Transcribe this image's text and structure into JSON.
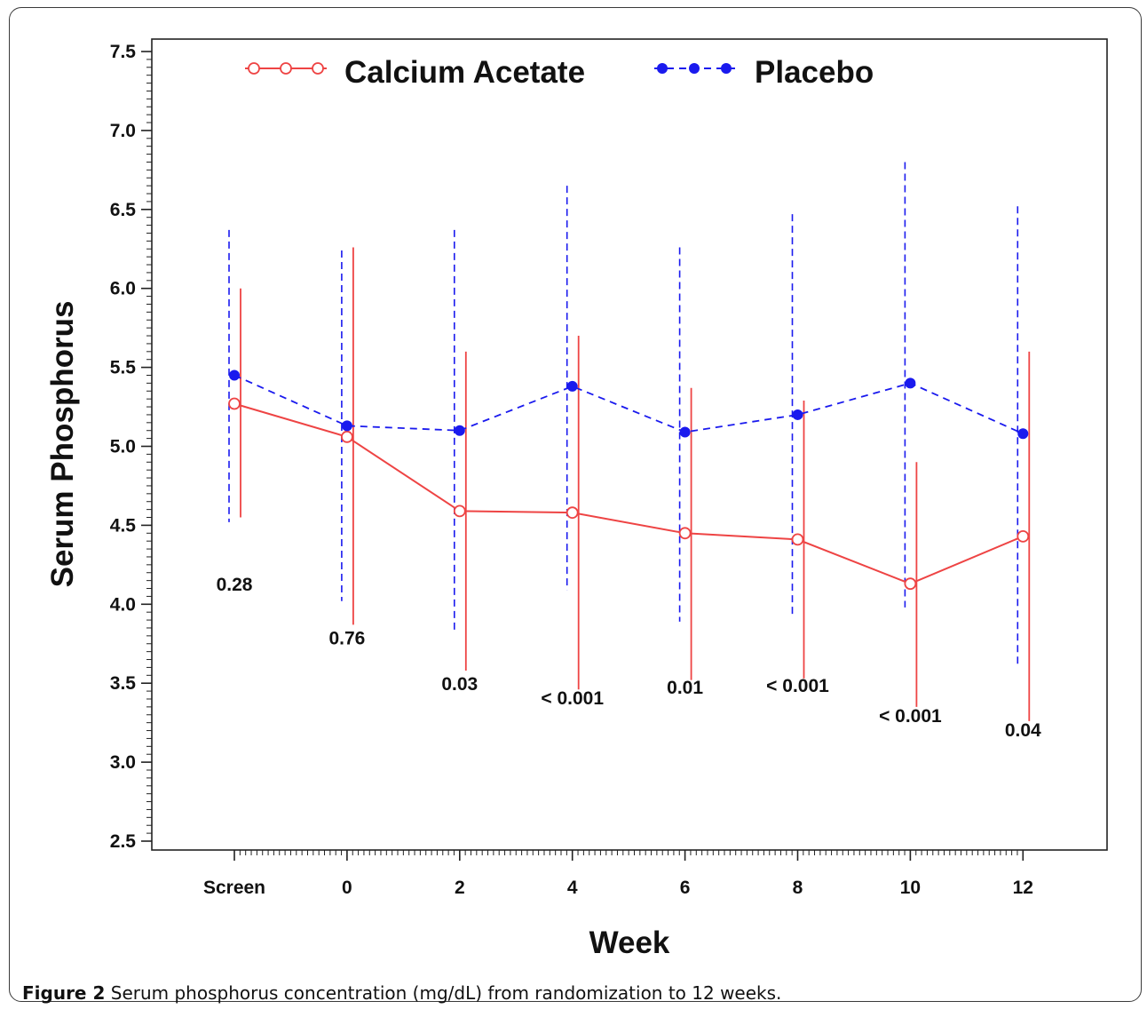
{
  "chart_data": {
    "type": "line",
    "xlabel": "Week",
    "ylabel": "Serum Phosphorus",
    "ylim": [
      2.5,
      7.5
    ],
    "yticks": [
      "2.5",
      "3.0",
      "3.5",
      "4.0",
      "4.5",
      "5.0",
      "5.5",
      "6.0",
      "6.5",
      "7.0",
      "7.5"
    ],
    "categories": [
      "Screen",
      "0",
      "2",
      "4",
      "6",
      "8",
      "10",
      "12"
    ],
    "legend_position": "top",
    "series": [
      {
        "name": "Calcium Acetate",
        "color": "#ee4444",
        "marker": "open-circle",
        "line": "solid",
        "values": [
          5.27,
          5.06,
          4.59,
          4.58,
          4.45,
          4.41,
          4.13,
          4.43
        ],
        "upper": [
          6.0,
          6.26,
          5.6,
          5.7,
          5.37,
          5.29,
          4.9,
          5.6
        ],
        "lower": [
          4.55,
          3.87,
          3.58,
          3.46,
          3.52,
          3.53,
          3.35,
          3.26
        ]
      },
      {
        "name": "Placebo",
        "color": "#1a1aee",
        "marker": "filled-circle",
        "line": "dashed",
        "values": [
          5.45,
          5.13,
          5.1,
          5.38,
          5.09,
          5.2,
          5.4,
          5.08
        ],
        "upper": [
          6.37,
          6.24,
          6.37,
          6.65,
          6.26,
          6.47,
          6.8,
          6.52
        ],
        "lower": [
          4.52,
          4.02,
          3.82,
          4.09,
          3.89,
          3.92,
          3.98,
          3.62
        ]
      }
    ],
    "pvalues": [
      "0.28",
      "0.76",
      "0.03",
      "< 0.001",
      "0.01",
      "< 0.001",
      "< 0.001",
      "0.04"
    ],
    "pvalue_y": [
      4.13,
      3.79,
      3.5,
      3.41,
      3.48,
      3.49,
      3.3,
      3.21
    ]
  },
  "legend": {
    "calcium_label": "Calcium Acetate",
    "placebo_label": "Placebo"
  },
  "caption": {
    "label": "Figure 2",
    "text": " Serum phosphorus concentration (mg/dL) from randomization to 12 weeks."
  }
}
